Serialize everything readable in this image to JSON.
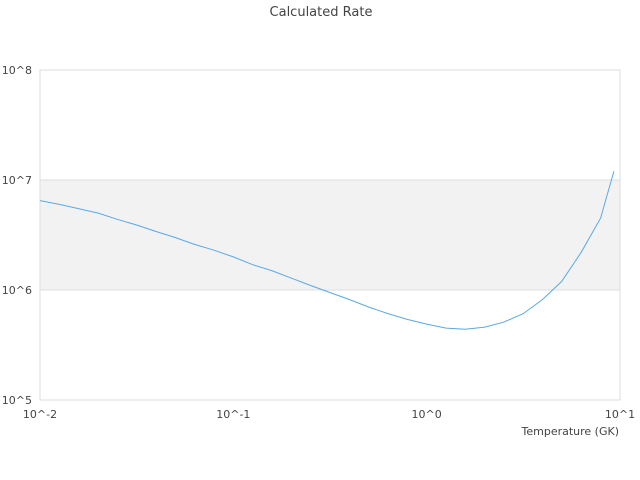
{
  "chart_data": {
    "type": "line",
    "title": "Calculated Rate",
    "xlabel": "Temperature (GK)",
    "ylabel": "",
    "x_scale": "log",
    "y_scale": "log",
    "xlim": [
      0.01,
      10
    ],
    "ylim": [
      100000,
      100000000
    ],
    "x_ticks": [
      {
        "value": 0.01,
        "label": "10^-2"
      },
      {
        "value": 0.1,
        "label": "10^-1"
      },
      {
        "value": 1,
        "label": "10^0"
      },
      {
        "value": 10,
        "label": "10^1"
      }
    ],
    "y_ticks": [
      {
        "value": 100000,
        "label": "10^5"
      },
      {
        "value": 1000000,
        "label": "10^6"
      },
      {
        "value": 10000000,
        "label": "10^7"
      },
      {
        "value": 100000000,
        "label": "10^8"
      }
    ],
    "grid": true,
    "band_shading": "alternating decades",
    "line_color": "#5aa9e6",
    "series": [
      {
        "x": [
          0.01,
          0.0126,
          0.0158,
          0.02,
          0.025,
          0.0316,
          0.0398,
          0.05,
          0.063,
          0.0794,
          0.1,
          0.126,
          0.158,
          0.2,
          0.25,
          0.316,
          0.398,
          0.5,
          0.63,
          0.794,
          1.0,
          1.26,
          1.58,
          2.0,
          2.5,
          3.16,
          3.98,
          5.0,
          6.3,
          7.94,
          9.3
        ],
        "y": [
          6500000,
          6000000,
          5500000,
          5000000,
          4400000,
          3900000,
          3400000,
          3000000,
          2600000,
          2300000,
          2000000,
          1700000,
          1500000,
          1280000,
          1100000,
          950000,
          820000,
          700000,
          610000,
          540000,
          490000,
          450000,
          440000,
          460000,
          510000,
          610000,
          820000,
          1200000,
          2200000,
          4500000,
          12000000
        ]
      }
    ]
  }
}
